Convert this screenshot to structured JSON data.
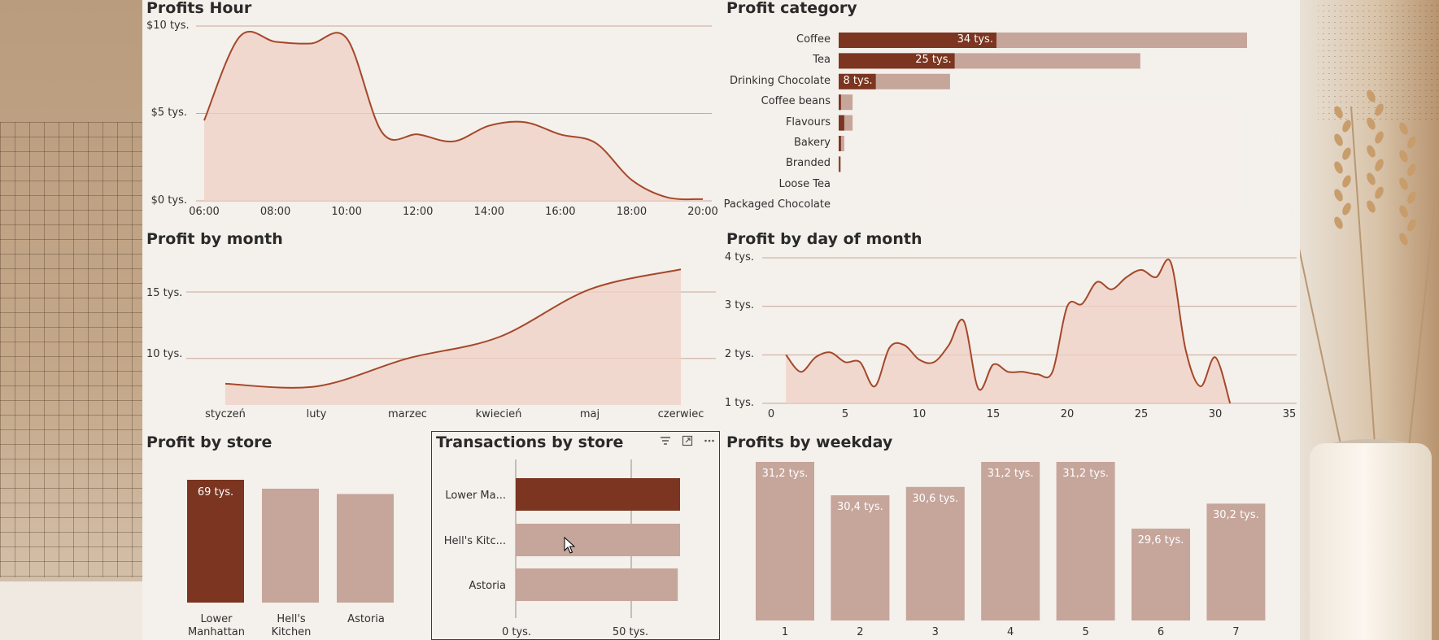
{
  "theme": {
    "accent": "#7b3520",
    "accent_light": "#c6a59b",
    "area": "#f0d0c6",
    "line": "#a4482a",
    "grid": "#caa79a"
  },
  "profits_hour": {
    "title": "Profits Hour",
    "y_ticks": [
      "$10 tys.",
      "$5 tys.",
      "$0 tys."
    ],
    "x_ticks": [
      "06:00",
      "08:00",
      "10:00",
      "12:00",
      "14:00",
      "16:00",
      "18:00",
      "20:00"
    ]
  },
  "profit_category": {
    "title": "Profit category",
    "items": [
      {
        "label": "Coffee",
        "dark": 34,
        "total": 88,
        "value_label": "34 tys."
      },
      {
        "label": "Tea",
        "dark": 25,
        "total": 65,
        "value_label": "25 tys."
      },
      {
        "label": "Drinking Chocolate",
        "dark": 8,
        "total": 24,
        "value_label": "8 tys."
      },
      {
        "label": "Coffee beans",
        "dark": 0.5,
        "total": 3,
        "value_label": ""
      },
      {
        "label": "Flavours",
        "dark": 1.2,
        "total": 3,
        "value_label": ""
      },
      {
        "label": "Bakery",
        "dark": 0.5,
        "total": 1.2,
        "value_label": ""
      },
      {
        "label": "Branded",
        "dark": 0.3,
        "total": 0.5,
        "value_label": ""
      },
      {
        "label": "Loose Tea",
        "dark": 0,
        "total": 0,
        "value_label": ""
      },
      {
        "label": "Packaged Chocolate",
        "dark": 0,
        "total": 0,
        "value_label": ""
      }
    ]
  },
  "profit_by_month": {
    "title": "Profit by month",
    "y_ticks": [
      "15 tys.",
      "10 tys."
    ],
    "x_ticks": [
      "styczeń",
      "luty",
      "marzec",
      "kwiecień",
      "maj",
      "czerwiec"
    ]
  },
  "profit_by_day": {
    "title": "Profit by day of month",
    "y_ticks": [
      "4 tys.",
      "3 tys.",
      "2 tys.",
      "1 tys."
    ],
    "x_ticks": [
      "0",
      "5",
      "10",
      "15",
      "20",
      "25",
      "30",
      "35"
    ]
  },
  "profit_by_store": {
    "title": "Profit by store",
    "stores": [
      {
        "label_line1": "Lower",
        "label_line2": "Manhattan",
        "value_label": "69 tys."
      },
      {
        "label_line1": "Hell's",
        "label_line2": "Kitchen",
        "value_label": ""
      },
      {
        "label_line1": "Astoria",
        "label_line2": "",
        "value_label": ""
      }
    ]
  },
  "transactions_by_store": {
    "title": "Transactions by store",
    "stores": [
      "Lower Ma...",
      "Hell's Kitc...",
      "Astoria"
    ],
    "x_ticks": [
      "0 tys.",
      "50 tys."
    ]
  },
  "profits_by_weekday": {
    "title": "Profits by weekday",
    "labels": [
      "31,2 tys.",
      "30,4 tys.",
      "30,6 tys.",
      "31,2 tys.",
      "31,2 tys.",
      "29,6 tys.",
      "30,2 tys."
    ],
    "x_ticks": [
      "1",
      "2",
      "3",
      "4",
      "5",
      "6",
      "7"
    ]
  },
  "chart_data": [
    {
      "type": "area",
      "title": "Profits Hour",
      "x": [
        "06:00",
        "07:00",
        "08:00",
        "09:00",
        "10:00",
        "11:00",
        "12:00",
        "13:00",
        "14:00",
        "15:00",
        "16:00",
        "17:00",
        "18:00",
        "19:00",
        "20:00"
      ],
      "values": [
        4.6,
        9.4,
        9.1,
        9.0,
        9.3,
        3.9,
        3.8,
        3.4,
        4.3,
        4.5,
        3.8,
        3.3,
        1.2,
        0.2,
        0.1
      ],
      "ylim": [
        0,
        10
      ]
    },
    {
      "type": "bar",
      "title": "Profit category",
      "categories": [
        "Coffee",
        "Tea",
        "Drinking Chocolate",
        "Coffee beans",
        "Flavours",
        "Bakery",
        "Branded",
        "Loose Tea",
        "Packaged Chocolate"
      ],
      "series": [
        {
          "values": [
            34,
            25,
            8,
            0.5,
            1.2,
            0.5,
            0.3,
            0,
            0
          ]
        },
        {
          "values": [
            88,
            65,
            24,
            3,
            3,
            1.2,
            0.5,
            0,
            0
          ]
        }
      ]
    },
    {
      "type": "area",
      "title": "Profit by month",
      "x": [
        "styczeń",
        "luty",
        "marzec",
        "kwiecień",
        "maj",
        "czerwiec"
      ],
      "values": [
        8.1,
        7.9,
        10.0,
        11.6,
        15.2,
        16.7
      ],
      "ylim": [
        6.5,
        18
      ]
    },
    {
      "type": "area",
      "title": "Profit by day of month",
      "x": [
        1,
        2,
        3,
        4,
        5,
        6,
        7,
        8,
        9,
        10,
        11,
        12,
        13,
        14,
        15,
        16,
        17,
        18,
        19,
        20,
        21,
        22,
        23,
        24,
        25,
        26,
        27,
        28,
        29,
        30,
        31
      ],
      "values": [
        2.0,
        1.65,
        1.95,
        2.05,
        1.85,
        1.85,
        1.35,
        2.15,
        2.2,
        1.9,
        1.85,
        2.2,
        2.7,
        1.3,
        1.8,
        1.65,
        1.65,
        1.6,
        1.65,
        3.0,
        3.05,
        3.5,
        3.35,
        3.6,
        3.75,
        3.6,
        3.9,
        2.1,
        1.35,
        1.95,
        1.0
      ],
      "ylim": [
        1,
        4
      ]
    },
    {
      "type": "bar",
      "title": "Profit by store",
      "categories": [
        "Lower Manhattan",
        "Hell's Kitchen",
        "Astoria"
      ],
      "values": [
        69,
        64,
        61
      ]
    },
    {
      "type": "bar",
      "title": "Transactions by store",
      "categories": [
        "Lower Ma...",
        "Hell's Kitc...",
        "Astoria"
      ],
      "values": [
        72,
        72,
        71
      ],
      "xlim": [
        0,
        90
      ]
    },
    {
      "type": "bar",
      "title": "Profits by weekday",
      "categories": [
        "1",
        "2",
        "3",
        "4",
        "5",
        "6",
        "7"
      ],
      "values": [
        31.2,
        30.4,
        30.6,
        31.2,
        31.2,
        29.6,
        30.2
      ]
    }
  ]
}
